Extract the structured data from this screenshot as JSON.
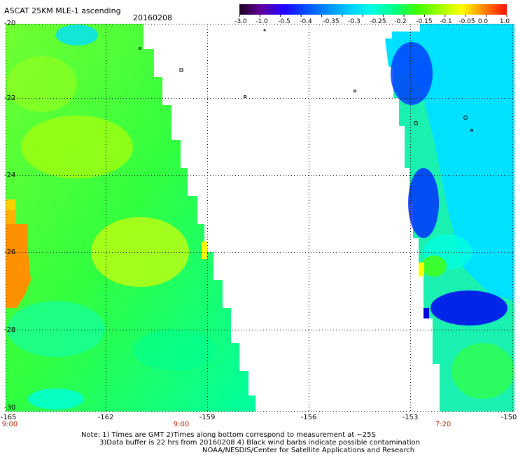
{
  "header": {
    "title": "ASCAT 25KM MLE-1 ascending",
    "date": "20160208"
  },
  "colorbar": {
    "labels": [
      "-3.0",
      "-1.0",
      "-0.5",
      "-0.4",
      "-0.35",
      "-0.3",
      "-0.25",
      "-0.2",
      "-0.15",
      "-0.1",
      "-0.05",
      "0.0",
      "1.0"
    ],
    "colors": [
      "#200020",
      "#6000a0",
      "#2000ff",
      "#0050ff",
      "#0090ff",
      "#00d0ff",
      "#00ffe0",
      "#00ff80",
      "#40ff00",
      "#a0ff00",
      "#ffff00",
      "#ff8000",
      "#ff1000"
    ]
  },
  "map": {
    "lat_labels": [
      "-20",
      "-22",
      "-24",
      "-26",
      "-28",
      "-30"
    ],
    "lon_labels": [
      "-165",
      "-162",
      "-159",
      "-156",
      "-153",
      "-150"
    ],
    "time_labels": [
      "9:00",
      "9:00",
      "7:20"
    ]
  },
  "notes": {
    "line1": "Note: 1) Times are GMT 2)Times along bottom correspond to measurement at ~25S",
    "line2": "3)Data buffer is 22 hrs from 20160208 4) Black wind barbs indicate possible contamination",
    "line3": "NOAA/NESDIS/Center for Satellite Applications and Research"
  }
}
